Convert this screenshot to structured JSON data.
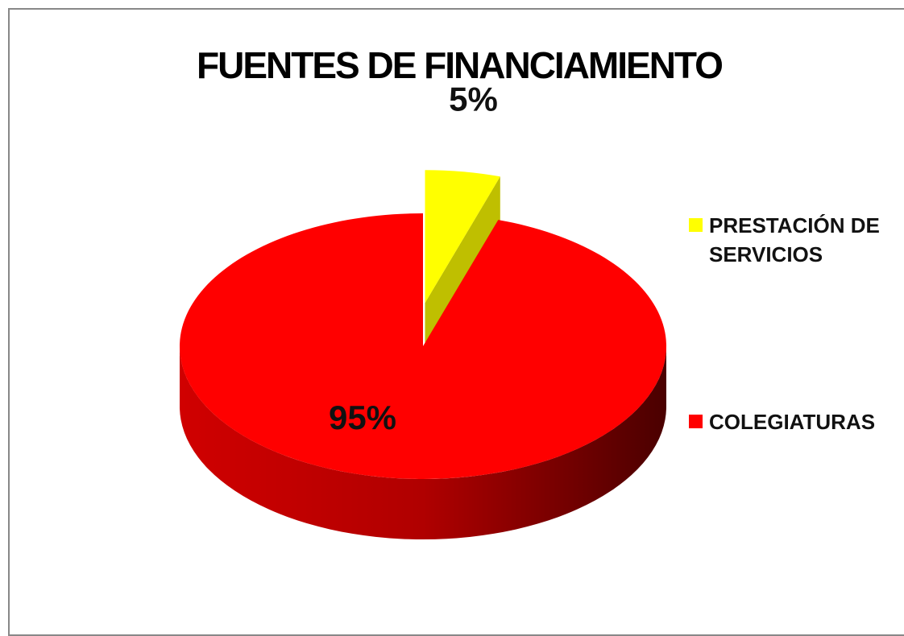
{
  "chart_data": {
    "type": "pie",
    "title": "FUENTES DE FINANCIAMIENTO",
    "categories": [
      "PRESTACIÓN DE SERVICIOS",
      "COLEGIATURAS"
    ],
    "values": [
      5,
      95
    ],
    "value_labels": [
      "5%",
      "95%"
    ],
    "colors": [
      "#ffff00",
      "#ff0000"
    ],
    "legend": "right"
  }
}
